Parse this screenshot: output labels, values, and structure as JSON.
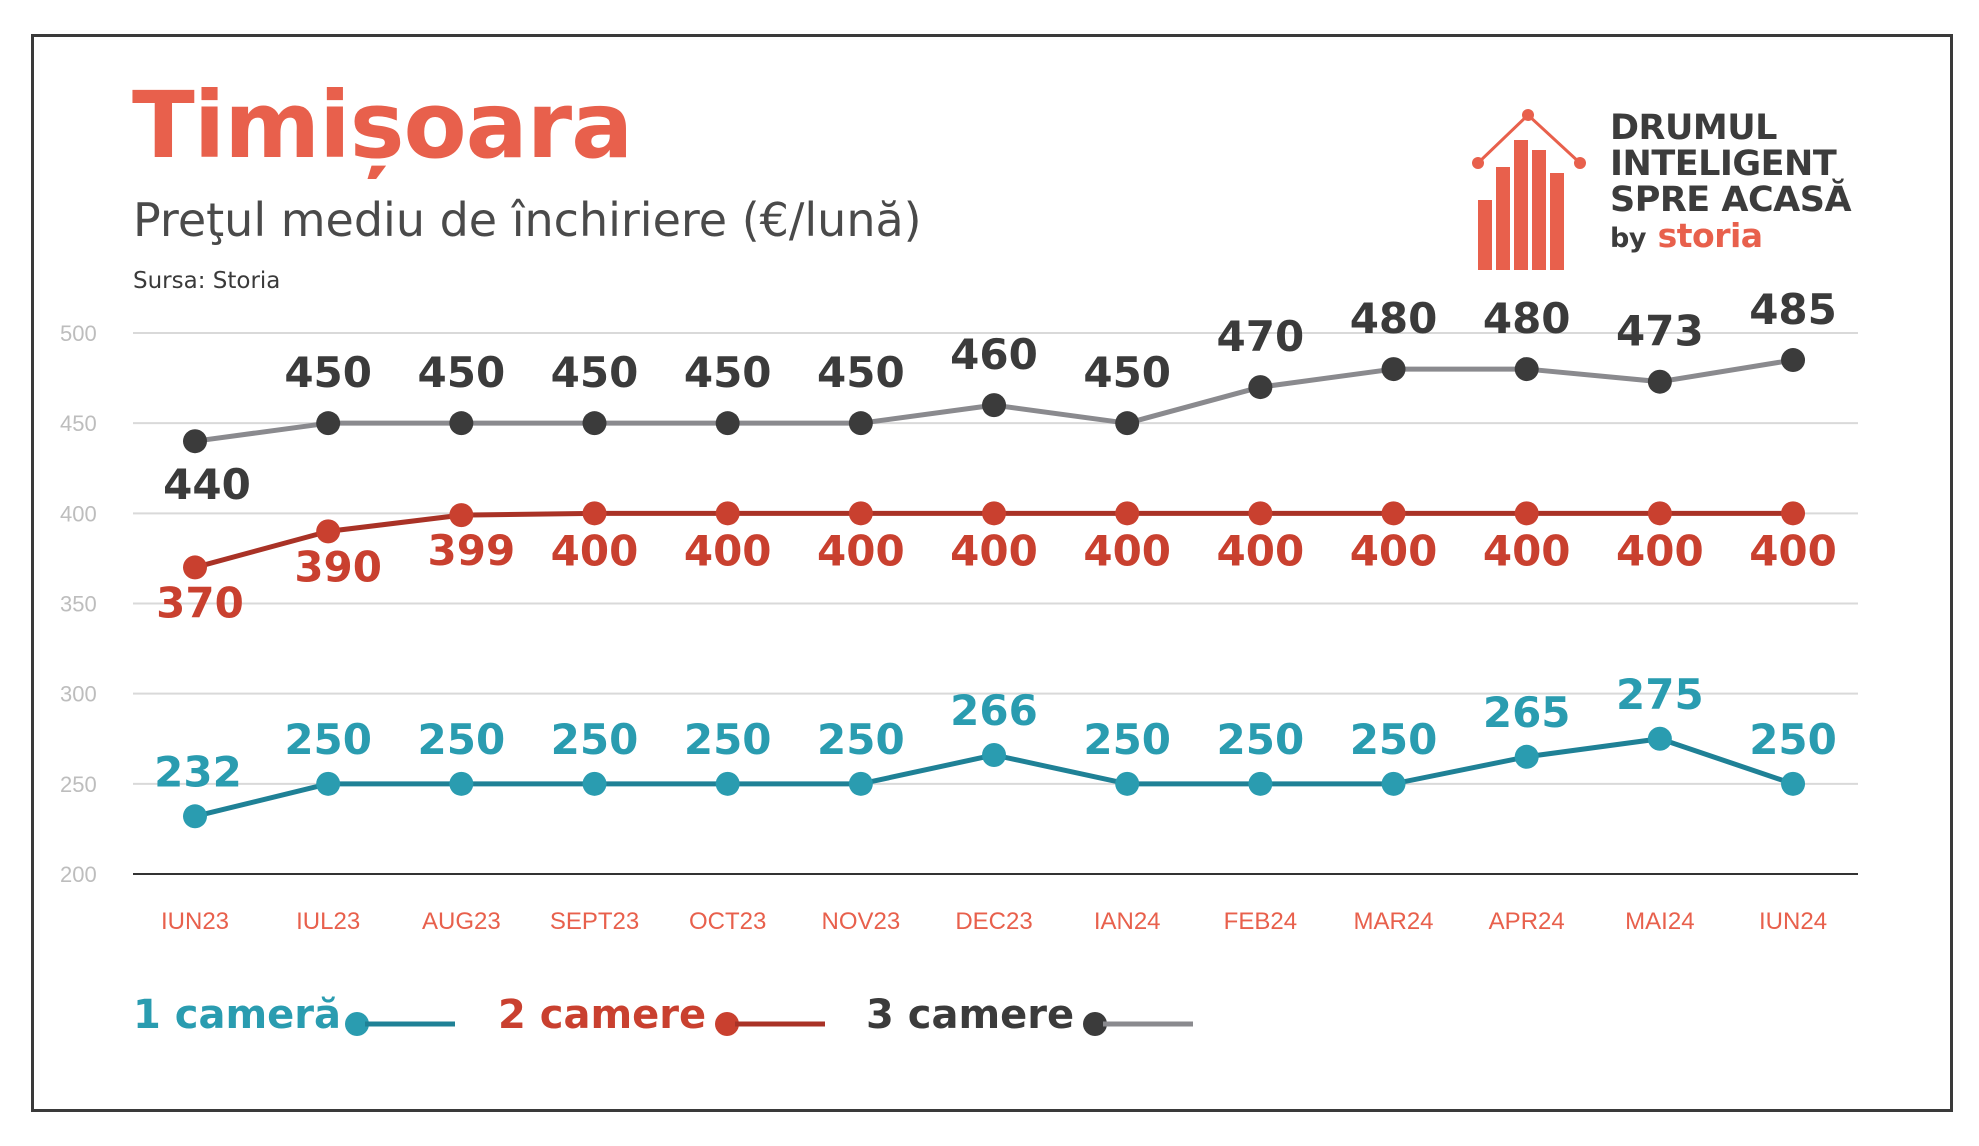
{
  "header": {
    "title": "Timișoara",
    "subtitle": "Preţul mediu de închiriere (€/lună)",
    "source": "Sursa: Storia"
  },
  "logo": {
    "line1": "DRUMUL",
    "line2": "INTELIGENT",
    "line3": "SPRE ACASĂ",
    "by": "by",
    "brand": "storia",
    "color": "#e8604c"
  },
  "chart_data": {
    "type": "line",
    "categories": [
      "IUN23",
      "IUL23",
      "AUG23",
      "SEPT23",
      "OCT23",
      "NOV23",
      "DEC23",
      "IAN24",
      "FEB24",
      "MAR24",
      "APR24",
      "MAI24",
      "IUN24"
    ],
    "ylim": [
      200,
      500
    ],
    "yticks": [
      500,
      450,
      400,
      350,
      300,
      250,
      200
    ],
    "grid": true,
    "legend_position": "bottom-left",
    "series": [
      {
        "name": "1 cameră",
        "color": "#2a9cb0",
        "line_color": "#1f8196",
        "values": [
          232,
          250,
          250,
          250,
          250,
          250,
          266,
          250,
          250,
          250,
          265,
          275,
          250
        ],
        "labels": [
          "232",
          "250",
          "250",
          "250",
          "250",
          "250",
          "266",
          "250",
          "250",
          "250",
          "265",
          "275",
          "250"
        ]
      },
      {
        "name": "2 camere",
        "color": "#c9402f",
        "line_color": "#a93226",
        "values": [
          370,
          390,
          399,
          400,
          400,
          400,
          400,
          400,
          400,
          400,
          400,
          400,
          400
        ],
        "labels": [
          "370",
          "390",
          "399",
          "400",
          "400",
          "400",
          "400",
          "400",
          "400",
          "400",
          "400",
          "400",
          "400"
        ]
      },
      {
        "name": "3 camere",
        "color": "#3b3b3b",
        "line_color": "#8a8a8e",
        "values": [
          440,
          450,
          450,
          450,
          450,
          450,
          460,
          450,
          470,
          480,
          480,
          473,
          485
        ],
        "labels": [
          "440",
          "450",
          "450",
          "450",
          "450",
          "450",
          "460",
          "450",
          "470",
          "480",
          "480",
          "473",
          "485"
        ]
      }
    ]
  }
}
